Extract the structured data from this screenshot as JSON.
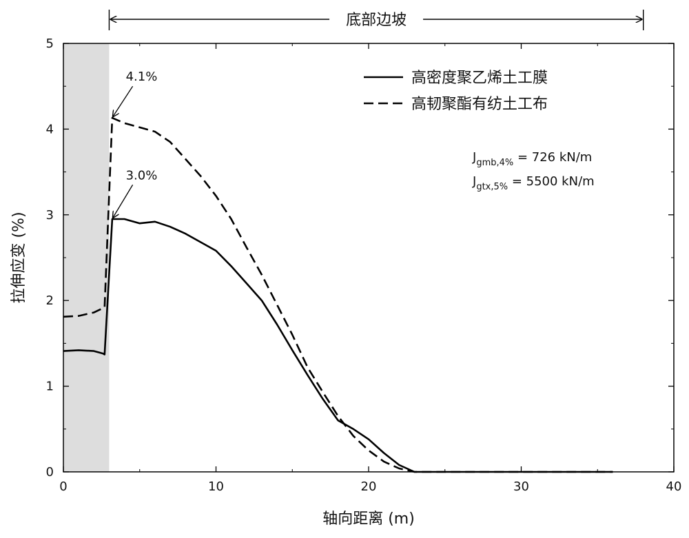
{
  "chart_data": {
    "type": "line",
    "xlabel": "轴向距离 (m)",
    "ylabel": "拉伸应变 (%)",
    "xlim": [
      0,
      40
    ],
    "ylim": [
      0,
      5
    ],
    "x_ticks": [
      0,
      10,
      20,
      30,
      40
    ],
    "y_ticks": [
      0,
      1,
      2,
      3,
      4,
      5
    ],
    "grid": false,
    "legend_position": "top-right",
    "shaded_region": {
      "x_start": 0,
      "x_end": 3.0,
      "color": "#dddddd"
    },
    "top_span": {
      "label": "底部边坡",
      "x_start": 3.0,
      "x_end": 38.0
    },
    "series": [
      {
        "name": "高密度聚乙烯土工膜",
        "style": "solid",
        "color": "#000000",
        "points": [
          [
            0,
            1.41
          ],
          [
            1,
            1.42
          ],
          [
            2,
            1.41
          ],
          [
            2.6,
            1.38
          ],
          [
            2.7,
            1.37
          ],
          [
            3.2,
            2.95
          ],
          [
            4,
            2.95
          ],
          [
            5,
            2.9
          ],
          [
            6,
            2.92
          ],
          [
            7,
            2.86
          ],
          [
            8,
            2.78
          ],
          [
            9,
            2.68
          ],
          [
            10,
            2.58
          ],
          [
            11,
            2.4
          ],
          [
            12,
            2.2
          ],
          [
            13,
            2.0
          ],
          [
            14,
            1.72
          ],
          [
            15,
            1.42
          ],
          [
            16,
            1.13
          ],
          [
            17,
            0.85
          ],
          [
            18,
            0.6
          ],
          [
            19,
            0.5
          ],
          [
            20,
            0.38
          ],
          [
            21,
            0.22
          ],
          [
            22,
            0.08
          ],
          [
            23,
            0.0
          ],
          [
            30,
            0.0
          ],
          [
            36,
            0.0
          ]
        ]
      },
      {
        "name": "高韧聚酯有纺土工布",
        "style": "dashed",
        "color": "#000000",
        "points": [
          [
            0,
            1.81
          ],
          [
            1,
            1.82
          ],
          [
            2,
            1.86
          ],
          [
            2.7,
            1.92
          ],
          [
            3.2,
            4.13
          ],
          [
            4,
            4.07
          ],
          [
            5,
            4.02
          ],
          [
            6,
            3.97
          ],
          [
            7,
            3.85
          ],
          [
            8,
            3.65
          ],
          [
            9,
            3.45
          ],
          [
            10,
            3.22
          ],
          [
            11,
            2.95
          ],
          [
            12,
            2.62
          ],
          [
            13,
            2.3
          ],
          [
            14,
            1.95
          ],
          [
            15,
            1.6
          ],
          [
            16,
            1.22
          ],
          [
            17,
            0.93
          ],
          [
            18,
            0.65
          ],
          [
            19,
            0.42
          ],
          [
            20,
            0.25
          ],
          [
            21,
            0.12
          ],
          [
            22,
            0.04
          ],
          [
            23,
            0.0
          ],
          [
            30,
            0.0
          ],
          [
            36,
            0.0
          ]
        ]
      }
    ],
    "annotations": [
      {
        "text": "4.1%",
        "x": 3.2,
        "y": 4.13,
        "label_x": 4.0,
        "label_y": 4.5
      },
      {
        "text": "3.0%",
        "x": 3.2,
        "y": 2.95,
        "label_x": 4.0,
        "label_y": 3.35
      }
    ],
    "parameters": [
      {
        "main": "J",
        "sub": "gmb,4%",
        "rest": " = 726 kN/m"
      },
      {
        "main": "J",
        "sub": "gtx,5%",
        "rest": " = 5500 kN/m"
      }
    ]
  }
}
